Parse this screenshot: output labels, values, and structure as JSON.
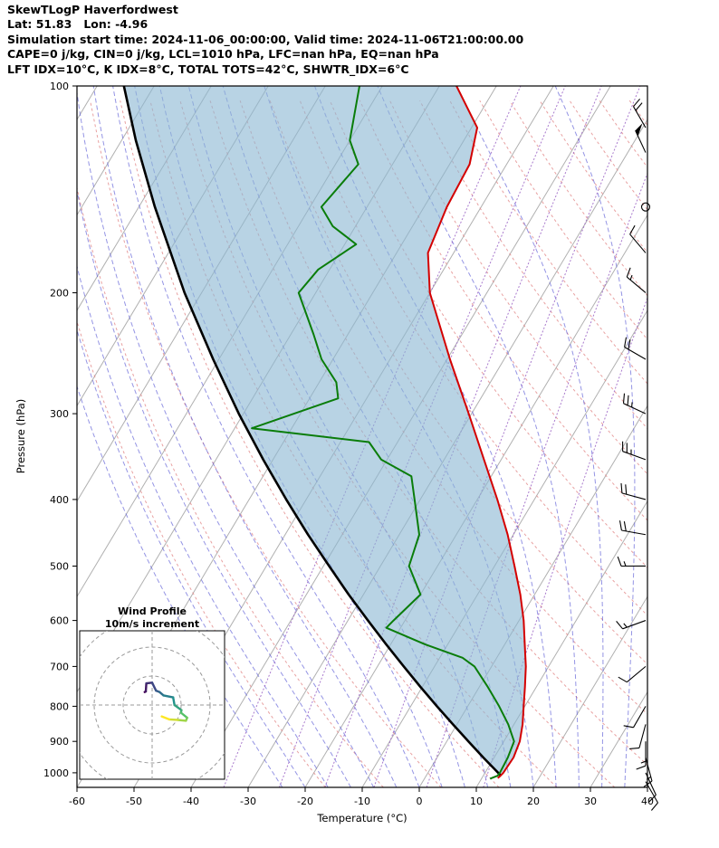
{
  "header": {
    "title": "SkewTLogP Haverfordwest",
    "location": "Lat: 51.83   Lon: -4.96",
    "times": "Simulation start time: 2024-11-06_00:00:00, Valid time: 2024-11-06T21:00:00.00",
    "indices1": "CAPE=0 j/kg, CIN=0 j/kg, LCL=1010 hPa, LFC=nan hPa, EQ=nan hPa",
    "indices2": "LFT IDX=10°C, K IDX=8°C, TOTAL TOTS=42°C, SHWTR_IDX=6°C"
  },
  "chart_data": {
    "type": "skewt_log_p",
    "x_axis": {
      "label": "Temperature (°C)",
      "min": -60,
      "max": 40,
      "ticks": [
        -60,
        -50,
        -40,
        -30,
        -20,
        -10,
        0,
        10,
        20,
        30,
        40
      ]
    },
    "y_axis": {
      "label": "Pressure (hPa)",
      "min": 100,
      "max": 1050,
      "ticks": [
        100,
        200,
        300,
        400,
        500,
        600,
        700,
        800,
        900,
        1000
      ]
    },
    "temperature_profile": [
      [
        1018,
        12.8
      ],
      [
        1010,
        13.0
      ],
      [
        1000,
        13.2
      ],
      [
        950,
        13.4
      ],
      [
        900,
        12.8
      ],
      [
        850,
        11.5
      ],
      [
        800,
        9.8
      ],
      [
        750,
        8.0
      ],
      [
        700,
        6.0
      ],
      [
        650,
        3.5
      ],
      [
        600,
        0.8
      ],
      [
        550,
        -2.5
      ],
      [
        500,
        -6.5
      ],
      [
        450,
        -11.0
      ],
      [
        400,
        -16.5
      ],
      [
        350,
        -23.0
      ],
      [
        300,
        -30.5
      ],
      [
        250,
        -39.5
      ],
      [
        200,
        -50.0
      ],
      [
        175,
        -54.5
      ],
      [
        150,
        -56.0
      ],
      [
        130,
        -56.5
      ],
      [
        115,
        -59.0
      ],
      [
        100,
        -67.0
      ]
    ],
    "dewpoint_profile": [
      [
        1020,
        11.5
      ],
      [
        1010,
        12.5
      ],
      [
        1000,
        12.6
      ],
      [
        950,
        12.4
      ],
      [
        900,
        11.8
      ],
      [
        850,
        9.0
      ],
      [
        800,
        5.5
      ],
      [
        750,
        1.5
      ],
      [
        700,
        -3.0
      ],
      [
        680,
        -6.0
      ],
      [
        650,
        -14.0
      ],
      [
        615,
        -22.5
      ],
      [
        600,
        -22.0
      ],
      [
        550,
        -20.0
      ],
      [
        500,
        -25.0
      ],
      [
        450,
        -26.5
      ],
      [
        400,
        -31.0
      ],
      [
        370,
        -34.0
      ],
      [
        350,
        -41.0
      ],
      [
        330,
        -45.0
      ],
      [
        315,
        -67.0
      ],
      [
        285,
        -55.0
      ],
      [
        270,
        -57.0
      ],
      [
        250,
        -62.0
      ],
      [
        230,
        -66.0
      ],
      [
        200,
        -73.0
      ],
      [
        185,
        -72.0
      ],
      [
        170,
        -68.0
      ],
      [
        160,
        -74.0
      ],
      [
        150,
        -78.0
      ],
      [
        130,
        -76.0
      ],
      [
        120,
        -80.0
      ],
      [
        100,
        -84.0
      ]
    ],
    "parcel_profile": [
      [
        1010,
        13.1
      ],
      [
        1000,
        12.3
      ],
      [
        950,
        8.1
      ],
      [
        900,
        3.8
      ],
      [
        850,
        -0.7
      ],
      [
        800,
        -5.4
      ],
      [
        750,
        -10.3
      ],
      [
        700,
        -15.4
      ],
      [
        650,
        -20.8
      ],
      [
        600,
        -26.5
      ],
      [
        550,
        -32.6
      ],
      [
        500,
        -39.0
      ],
      [
        450,
        -46.0
      ],
      [
        400,
        -53.5
      ],
      [
        350,
        -61.7
      ],
      [
        300,
        -70.8
      ],
      [
        250,
        -81.0
      ],
      [
        200,
        -93.0
      ],
      [
        150,
        -107.2
      ],
      [
        120,
        -117.5
      ],
      [
        100,
        -125.3
      ]
    ],
    "wind_barbs": [
      {
        "p": 115,
        "kt": 20,
        "dir": 330
      },
      {
        "p": 125,
        "kt": 50,
        "dir": 335
      },
      {
        "p": 150,
        "kt": 0,
        "dir": 0
      },
      {
        "p": 175,
        "kt": 10,
        "dir": 320
      },
      {
        "p": 200,
        "kt": 15,
        "dir": 310
      },
      {
        "p": 250,
        "kt": 20,
        "dir": 300
      },
      {
        "p": 300,
        "kt": 25,
        "dir": 295
      },
      {
        "p": 350,
        "kt": 25,
        "dir": 290
      },
      {
        "p": 400,
        "kt": 20,
        "dir": 285
      },
      {
        "p": 450,
        "kt": 20,
        "dir": 280
      },
      {
        "p": 500,
        "kt": 15,
        "dir": 270
      },
      {
        "p": 600,
        "kt": 15,
        "dir": 250
      },
      {
        "p": 700,
        "kt": 10,
        "dir": 230
      },
      {
        "p": 800,
        "kt": 10,
        "dir": 210
      },
      {
        "p": 850,
        "kt": 10,
        "dir": 195
      },
      {
        "p": 900,
        "kt": 15,
        "dir": 180
      },
      {
        "p": 950,
        "kt": 15,
        "dir": 165
      },
      {
        "p": 1000,
        "kt": 10,
        "dir": 155
      },
      {
        "p": 1030,
        "kt": 10,
        "dir": 150
      }
    ],
    "hodograph": {
      "title_line1": "Wind Profile",
      "title_line2": "10m/s increment",
      "ring_interval_ms": 10
    },
    "grid": {
      "isotherm_step": 10,
      "isotherm_range": [
        -130,
        40
      ],
      "dry_adiabats_theta_c": [
        -20,
        -10,
        0,
        10,
        20,
        30,
        40,
        50,
        60,
        70,
        80,
        90,
        100,
        110,
        120,
        130,
        140,
        150,
        160,
        170,
        180
      ],
      "moist_adiabats_start_c": [
        -24,
        -20,
        -16,
        -12,
        -8,
        -4,
        0,
        4,
        8,
        12,
        16,
        20,
        24,
        28,
        32,
        36,
        40
      ],
      "mixing_ratios_g_kg": [
        0.2,
        0.5,
        1,
        2,
        4,
        8
      ]
    },
    "colors": {
      "temperature": "#d40000",
      "dewpoint": "#0a7d0a",
      "parcel": "#000000",
      "fill": "#8cb8d4",
      "dry_adiabat": "#e38a8a",
      "moist_adiabat": "#5c5cd6",
      "mixing_ratio": "#a06cc8",
      "isotherm": "#b0b0b0",
      "barb": "#000000",
      "hodo_ring": "#999999"
    }
  }
}
